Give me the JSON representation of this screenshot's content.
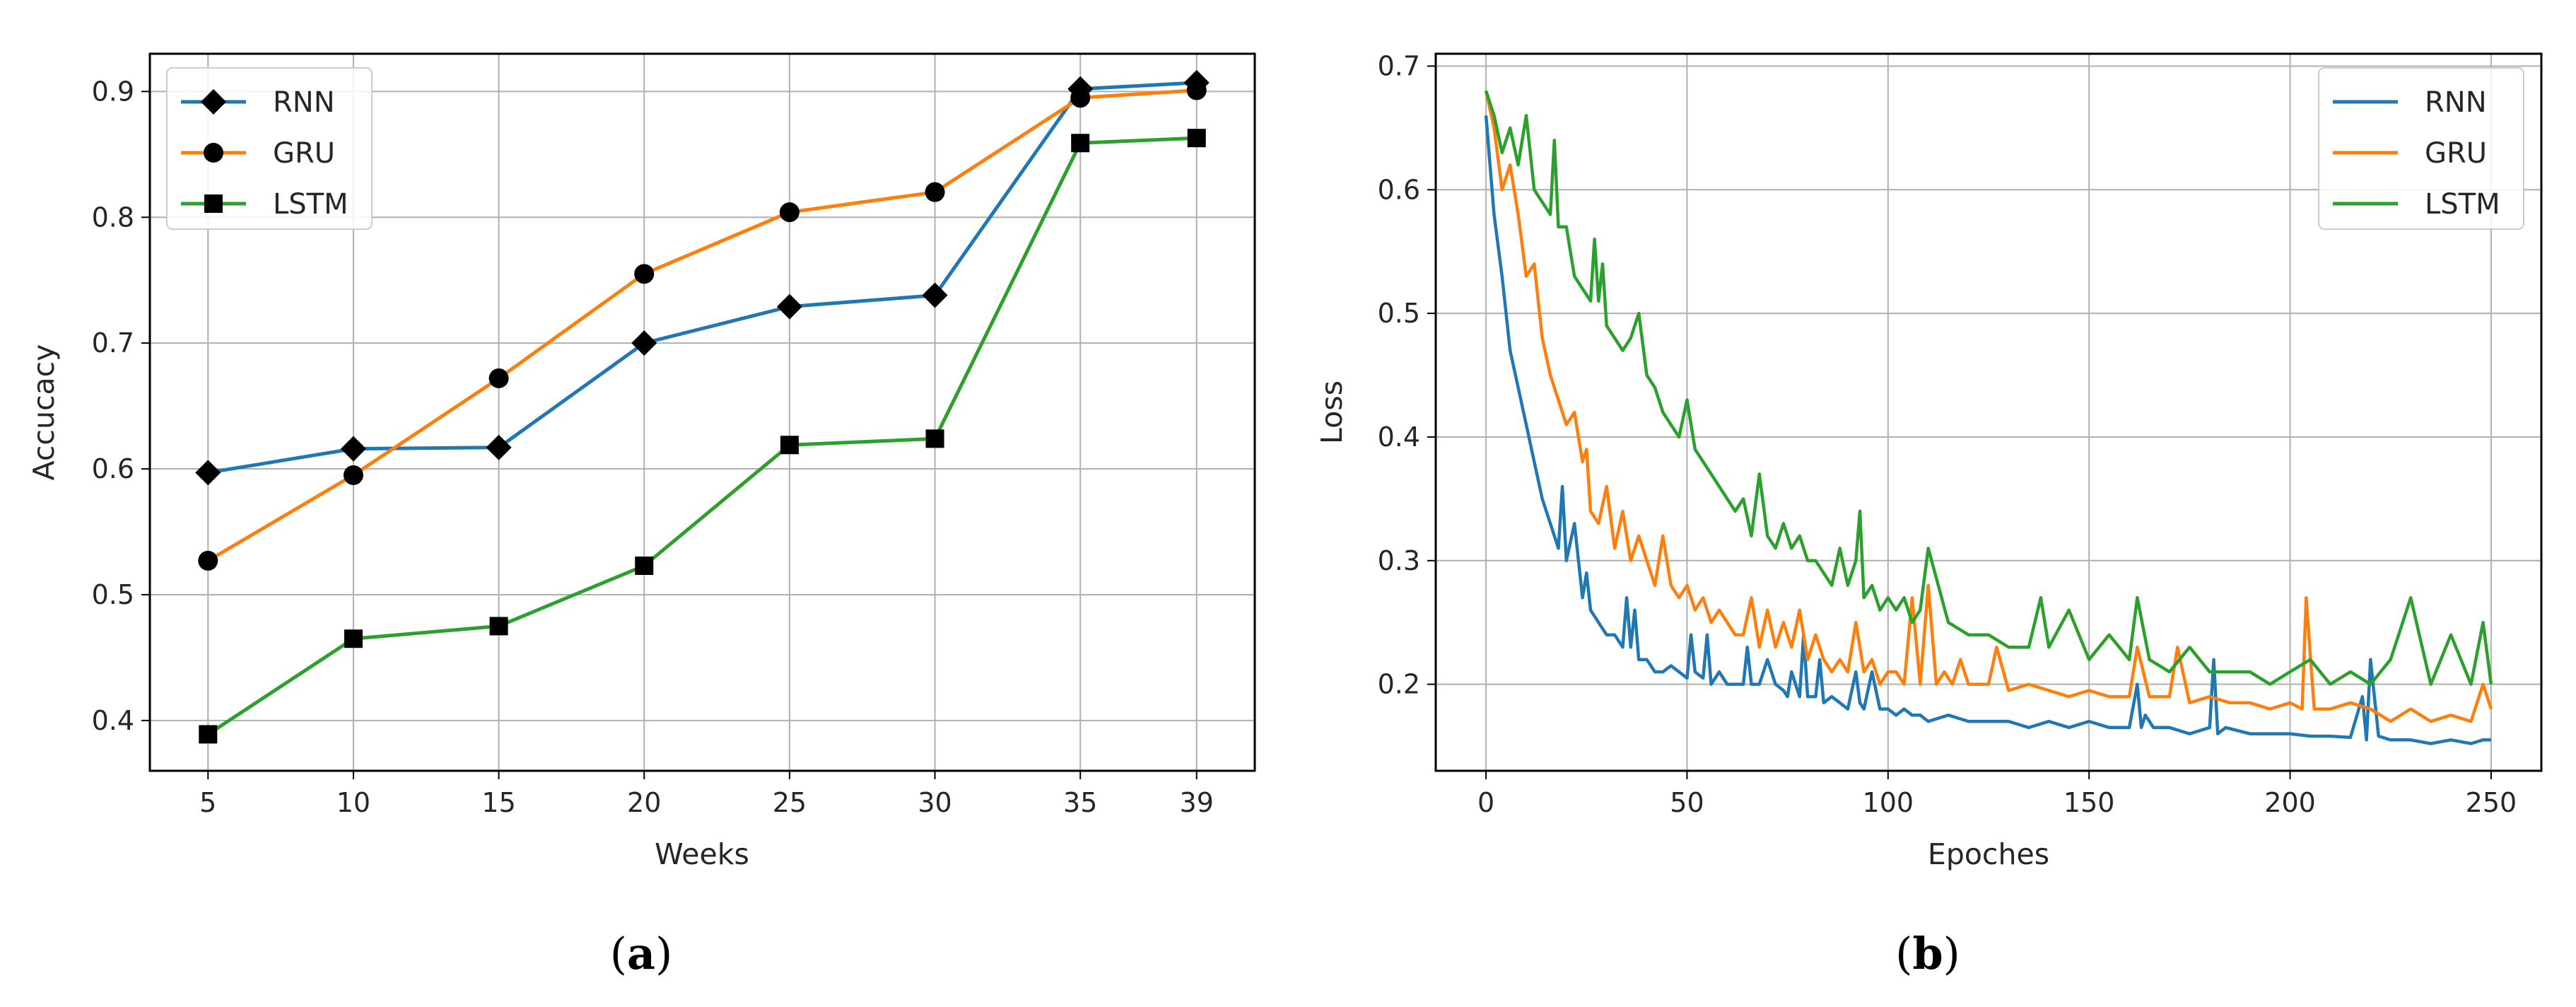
{
  "figures": [
    {
      "caption_open": "(",
      "caption_letter": "a",
      "caption_close": ")"
    },
    {
      "caption_open": "(",
      "caption_letter": "b",
      "caption_close": ")"
    }
  ],
  "chart_data": [
    {
      "type": "line",
      "xlabel": "Weeks",
      "ylabel": "Accucacy",
      "x": [
        5,
        10,
        15,
        20,
        25,
        30,
        35,
        39
      ],
      "xticks": [
        5,
        10,
        15,
        20,
        25,
        30,
        35,
        39
      ],
      "xlim": [
        3,
        41
      ],
      "ylim": [
        0.36,
        0.93
      ],
      "yticks": [
        0.4,
        0.5,
        0.6,
        0.7,
        0.8,
        0.9
      ],
      "grid": true,
      "legend_position": "top-left",
      "series": [
        {
          "name": "RNN",
          "color": "#1f77b4",
          "marker": "diamond",
          "values": [
            0.597,
            0.616,
            0.617,
            0.7,
            0.729,
            0.738,
            0.902,
            0.907
          ]
        },
        {
          "name": "GRU",
          "color": "#ff7f0e",
          "marker": "circle",
          "values": [
            0.527,
            0.595,
            0.672,
            0.755,
            0.804,
            0.82,
            0.895,
            0.901
          ]
        },
        {
          "name": "LSTM",
          "color": "#2ca02c",
          "marker": "square",
          "values": [
            0.389,
            0.465,
            0.475,
            0.523,
            0.619,
            0.624,
            0.859,
            0.863
          ]
        }
      ]
    },
    {
      "type": "line",
      "xlabel": "Epoches",
      "ylabel": "Loss",
      "xlim": [
        -12.5,
        262.5
      ],
      "xticks": [
        0,
        50,
        100,
        150,
        200,
        250
      ],
      "ylim": [
        0.13,
        0.71
      ],
      "yticks": [
        0.2,
        0.3,
        0.4,
        0.5,
        0.6,
        0.7
      ],
      "grid": true,
      "legend_position": "top-right",
      "series": [
        {
          "name": "RNN",
          "color": "#1f77b4",
          "x": [
            0,
            2,
            4,
            6,
            8,
            10,
            12,
            14,
            16,
            18,
            19,
            20,
            22,
            24,
            25,
            26,
            28,
            30,
            32,
            34,
            35,
            36,
            37,
            38,
            40,
            42,
            44,
            46,
            48,
            50,
            51,
            52,
            54,
            55,
            56,
            58,
            60,
            62,
            64,
            65,
            66,
            68,
            70,
            72,
            74,
            75,
            76,
            78,
            79,
            80,
            82,
            83,
            84,
            86,
            88,
            90,
            92,
            93,
            94,
            96,
            98,
            100,
            102,
            104,
            106,
            108,
            110,
            115,
            120,
            125,
            130,
            135,
            140,
            145,
            150,
            155,
            160,
            162,
            163,
            164,
            166,
            170,
            175,
            180,
            181,
            182,
            184,
            190,
            195,
            200,
            205,
            210,
            215,
            218,
            219,
            220,
            222,
            225,
            230,
            235,
            240,
            245,
            248,
            250
          ],
          "y": [
            0.66,
            0.58,
            0.53,
            0.47,
            0.44,
            0.41,
            0.38,
            0.35,
            0.33,
            0.31,
            0.36,
            0.3,
            0.33,
            0.27,
            0.29,
            0.26,
            0.25,
            0.24,
            0.24,
            0.23,
            0.27,
            0.23,
            0.26,
            0.22,
            0.22,
            0.21,
            0.21,
            0.215,
            0.21,
            0.205,
            0.24,
            0.21,
            0.205,
            0.24,
            0.2,
            0.21,
            0.2,
            0.2,
            0.2,
            0.23,
            0.2,
            0.2,
            0.22,
            0.2,
            0.195,
            0.19,
            0.21,
            0.19,
            0.24,
            0.19,
            0.19,
            0.22,
            0.185,
            0.19,
            0.185,
            0.18,
            0.21,
            0.185,
            0.18,
            0.21,
            0.18,
            0.18,
            0.175,
            0.18,
            0.175,
            0.175,
            0.17,
            0.175,
            0.17,
            0.17,
            0.17,
            0.165,
            0.17,
            0.165,
            0.17,
            0.165,
            0.165,
            0.2,
            0.165,
            0.175,
            0.165,
            0.165,
            0.16,
            0.165,
            0.22,
            0.16,
            0.165,
            0.16,
            0.16,
            0.16,
            0.158,
            0.158,
            0.157,
            0.19,
            0.155,
            0.22,
            0.158,
            0.155,
            0.155,
            0.152,
            0.155,
            0.152,
            0.155,
            0.155
          ]
        },
        {
          "name": "GRU",
          "color": "#ff7f0e",
          "x": [
            0,
            2,
            4,
            6,
            8,
            10,
            12,
            14,
            16,
            18,
            20,
            22,
            24,
            25,
            26,
            28,
            30,
            32,
            34,
            36,
            38,
            40,
            42,
            44,
            46,
            48,
            50,
            52,
            54,
            56,
            58,
            60,
            62,
            64,
            66,
            68,
            70,
            72,
            74,
            76,
            78,
            80,
            82,
            84,
            86,
            88,
            90,
            92,
            94,
            96,
            98,
            100,
            102,
            104,
            106,
            108,
            110,
            112,
            114,
            116,
            118,
            120,
            125,
            127,
            130,
            135,
            140,
            145,
            150,
            155,
            160,
            162,
            165,
            170,
            172,
            175,
            180,
            185,
            190,
            195,
            200,
            203,
            204,
            206,
            210,
            215,
            220,
            225,
            230,
            235,
            240,
            245,
            248,
            250
          ],
          "y": [
            0.68,
            0.65,
            0.6,
            0.62,
            0.58,
            0.53,
            0.54,
            0.48,
            0.45,
            0.43,
            0.41,
            0.42,
            0.38,
            0.39,
            0.34,
            0.33,
            0.36,
            0.31,
            0.34,
            0.3,
            0.32,
            0.3,
            0.28,
            0.32,
            0.28,
            0.27,
            0.28,
            0.26,
            0.27,
            0.25,
            0.26,
            0.25,
            0.24,
            0.24,
            0.27,
            0.23,
            0.26,
            0.23,
            0.25,
            0.23,
            0.26,
            0.22,
            0.24,
            0.22,
            0.21,
            0.22,
            0.21,
            0.25,
            0.21,
            0.22,
            0.2,
            0.21,
            0.21,
            0.2,
            0.27,
            0.2,
            0.28,
            0.2,
            0.21,
            0.2,
            0.22,
            0.2,
            0.2,
            0.23,
            0.195,
            0.2,
            0.195,
            0.19,
            0.195,
            0.19,
            0.19,
            0.23,
            0.19,
            0.19,
            0.23,
            0.185,
            0.19,
            0.185,
            0.185,
            0.18,
            0.185,
            0.18,
            0.27,
            0.18,
            0.18,
            0.185,
            0.18,
            0.17,
            0.18,
            0.17,
            0.175,
            0.17,
            0.2,
            0.18
          ]
        },
        {
          "name": "LSTM",
          "color": "#2ca02c",
          "x": [
            0,
            2,
            4,
            6,
            8,
            10,
            12,
            14,
            16,
            17,
            18,
            20,
            22,
            24,
            26,
            27,
            28,
            29,
            30,
            32,
            34,
            36,
            38,
            40,
            42,
            44,
            46,
            48,
            50,
            52,
            54,
            56,
            58,
            60,
            62,
            64,
            66,
            68,
            70,
            72,
            74,
            76,
            78,
            80,
            82,
            84,
            86,
            88,
            90,
            92,
            93,
            94,
            96,
            98,
            100,
            102,
            104,
            106,
            108,
            110,
            115,
            120,
            125,
            130,
            135,
            138,
            140,
            145,
            150,
            155,
            160,
            162,
            165,
            170,
            175,
            180,
            185,
            190,
            195,
            200,
            205,
            210,
            215,
            220,
            225,
            230,
            235,
            240,
            245,
            248,
            250
          ],
          "y": [
            0.68,
            0.66,
            0.63,
            0.65,
            0.62,
            0.66,
            0.6,
            0.59,
            0.58,
            0.64,
            0.57,
            0.57,
            0.53,
            0.52,
            0.51,
            0.56,
            0.51,
            0.54,
            0.49,
            0.48,
            0.47,
            0.48,
            0.5,
            0.45,
            0.44,
            0.42,
            0.41,
            0.4,
            0.43,
            0.39,
            0.38,
            0.37,
            0.36,
            0.35,
            0.34,
            0.35,
            0.32,
            0.37,
            0.32,
            0.31,
            0.33,
            0.31,
            0.32,
            0.3,
            0.3,
            0.29,
            0.28,
            0.31,
            0.28,
            0.3,
            0.34,
            0.27,
            0.28,
            0.26,
            0.27,
            0.26,
            0.27,
            0.25,
            0.26,
            0.31,
            0.25,
            0.24,
            0.24,
            0.23,
            0.23,
            0.27,
            0.23,
            0.26,
            0.22,
            0.24,
            0.22,
            0.27,
            0.22,
            0.21,
            0.23,
            0.21,
            0.21,
            0.21,
            0.2,
            0.21,
            0.22,
            0.2,
            0.21,
            0.2,
            0.22,
            0.27,
            0.2,
            0.24,
            0.2,
            0.25,
            0.2
          ]
        }
      ]
    }
  ]
}
